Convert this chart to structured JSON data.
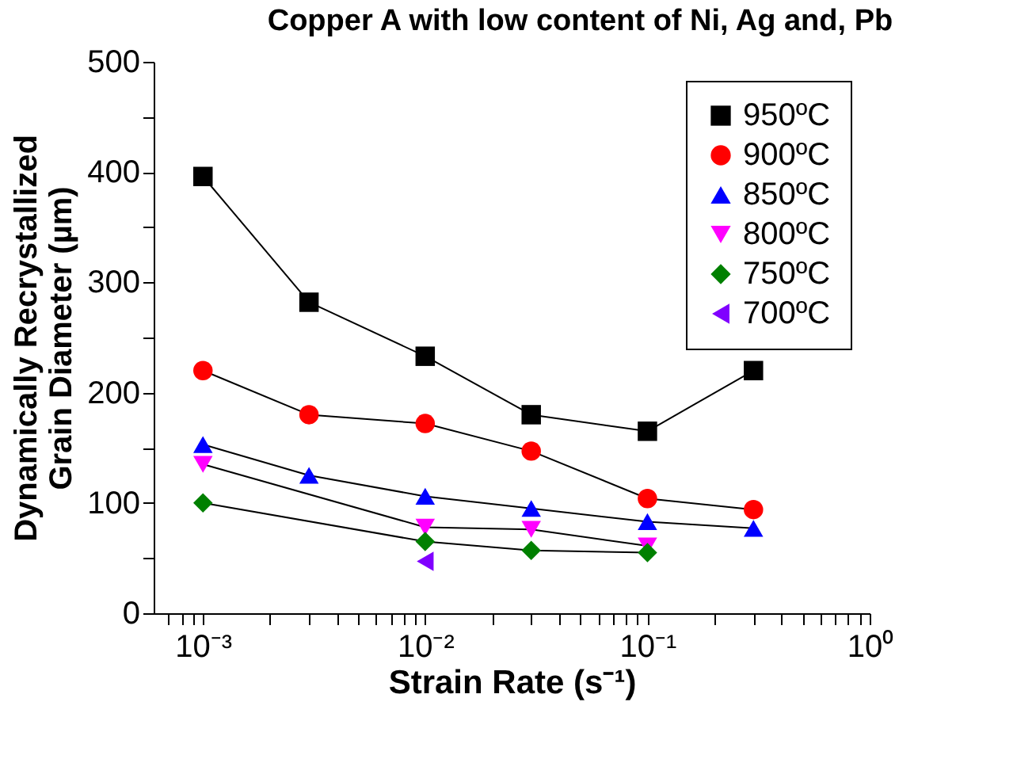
{
  "chart_data": {
    "type": "line",
    "title": "Copper A with low content of Ni, Ag and, Pb",
    "xlabel": "Strain Rate (s⁻¹)",
    "ylabel": "Dynamically Recrystallized\nGrain Diameter (µm)",
    "log": "x",
    "xlim": [
      0.0006,
      1
    ],
    "ylim": [
      0,
      500
    ],
    "xticks": [
      {
        "value": 0.0007,
        "label": null
      },
      {
        "value": 0.0008,
        "label": null
      },
      {
        "value": 0.0009,
        "label": null
      },
      {
        "value": 0.001,
        "label": "10⁻³"
      },
      {
        "value": 0.002,
        "label": null
      },
      {
        "value": 0.003,
        "label": null
      },
      {
        "value": 0.004,
        "label": null
      },
      {
        "value": 0.005,
        "label": null
      },
      {
        "value": 0.006,
        "label": null
      },
      {
        "value": 0.007,
        "label": null
      },
      {
        "value": 0.008,
        "label": null
      },
      {
        "value": 0.009,
        "label": null
      },
      {
        "value": 0.01,
        "label": "10⁻²"
      },
      {
        "value": 0.02,
        "label": null
      },
      {
        "value": 0.03,
        "label": null
      },
      {
        "value": 0.04,
        "label": null
      },
      {
        "value": 0.05,
        "label": null
      },
      {
        "value": 0.06,
        "label": null
      },
      {
        "value": 0.07,
        "label": null
      },
      {
        "value": 0.08,
        "label": null
      },
      {
        "value": 0.09,
        "label": null
      },
      {
        "value": 0.1,
        "label": "10⁻¹"
      },
      {
        "value": 0.2,
        "label": null
      },
      {
        "value": 0.3,
        "label": null
      },
      {
        "value": 0.4,
        "label": null
      },
      {
        "value": 0.5,
        "label": null
      },
      {
        "value": 0.6,
        "label": null
      },
      {
        "value": 0.7,
        "label": null
      },
      {
        "value": 0.8,
        "label": null
      },
      {
        "value": 0.9,
        "label": null
      },
      {
        "value": 1,
        "label": "10⁰"
      }
    ],
    "yticks": [
      0,
      {
        "value": 50,
        "label": null
      },
      100,
      {
        "value": 150,
        "label": null
      },
      200,
      {
        "value": 250,
        "label": null
      },
      300,
      {
        "value": 350,
        "label": null
      },
      400,
      {
        "value": 450,
        "label": null
      },
      500
    ],
    "grid": false,
    "legend": "top right",
    "line_style": "solid",
    "series": [
      {
        "name": "950ºC",
        "color": "#000000",
        "marker": "square",
        "x": [
          0.001,
          0.003,
          0.01,
          0.03,
          0.1,
          0.3
        ],
        "values": [
          396,
          282,
          233,
          180,
          165,
          220
        ]
      },
      {
        "name": "900ºC",
        "color": "#ff0000",
        "marker": "circle",
        "x": [
          0.001,
          0.003,
          0.01,
          0.03,
          0.1,
          0.3
        ],
        "values": [
          220,
          180,
          172,
          147,
          104,
          94
        ]
      },
      {
        "name": "850ºC",
        "color": "#0000ff",
        "marker": "triangle-up",
        "x": [
          0.001,
          0.003,
          0.01,
          0.03,
          0.1,
          0.3
        ],
        "values": [
          153,
          125,
          106,
          95,
          83,
          77
        ]
      },
      {
        "name": "800ºC",
        "color": "#ff00ff",
        "marker": "triangle-down",
        "x": [
          0.001,
          0.01,
          0.03,
          0.1
        ],
        "values": [
          135,
          78,
          76,
          61
        ]
      },
      {
        "name": "750ºC",
        "color": "#008000",
        "marker": "diamond",
        "x": [
          0.001,
          0.01,
          0.03,
          0.1
        ],
        "values": [
          100,
          65,
          57,
          55
        ]
      },
      {
        "name": "700ºC",
        "color": "#8000ff",
        "marker": "triangle-left",
        "x": [
          0.01
        ],
        "values": [
          47
        ]
      }
    ]
  }
}
